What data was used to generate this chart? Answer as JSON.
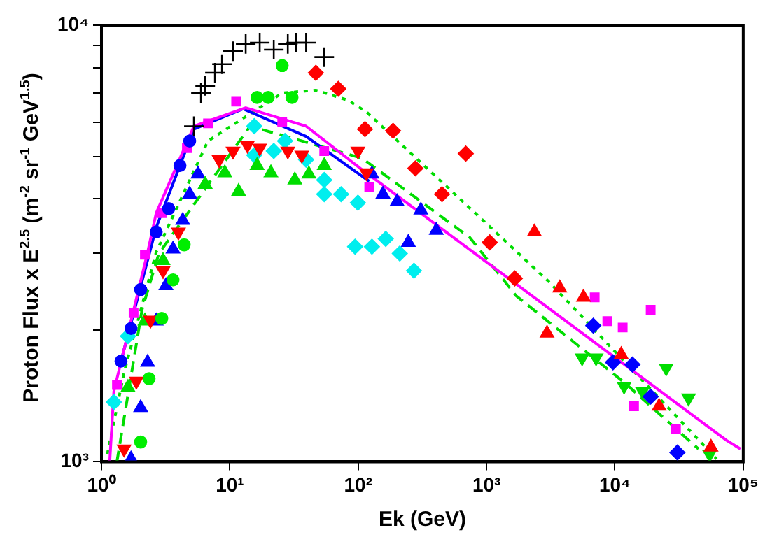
{
  "chart_data": {
    "type": "scatter",
    "xlabel": "Ek (GeV)",
    "ylabel": "Proton Flux x E$^{2.5}$ (m$^{-2}$ sr$^{-1}$ GeV$^{1.5}$)",
    "log": "xy",
    "grid": false,
    "legend": false,
    "xlim": [
      1,
      100000
    ],
    "ylim": [
      1000,
      10000
    ],
    "xticks": [
      {
        "value": 1,
        "label": "10⁰"
      },
      {
        "value": 10,
        "label": "10¹"
      },
      {
        "value": 100,
        "label": "10²"
      },
      {
        "value": 1000,
        "label": "10³"
      },
      {
        "value": 10000,
        "label": "10⁴"
      },
      {
        "value": 100000,
        "label": "10⁵"
      }
    ],
    "yticks": [
      {
        "value": 1000,
        "label": "10³"
      },
      {
        "value": 2000,
        "label": null
      },
      {
        "value": 3000,
        "label": null
      },
      {
        "value": 4000,
        "label": null
      },
      {
        "value": 5000,
        "label": null
      },
      {
        "value": 6000,
        "label": null
      },
      {
        "value": 7000,
        "label": null
      },
      {
        "value": 8000,
        "label": null
      },
      {
        "value": 9000,
        "label": null
      },
      {
        "value": 10000,
        "label": "10⁴"
      }
    ],
    "series": [
      {
        "color": "#000000",
        "marker": "cross",
        "x": [
          5.25,
          5.96,
          6.43,
          7.66,
          8.69,
          10.6,
          13.3,
          17.1,
          22.0,
          28.3,
          32.9,
          39.3,
          54.4
        ],
        "values": [
          5870,
          6990,
          7260,
          7780,
          8140,
          8720,
          9060,
          9120,
          8790,
          9060,
          9120,
          9120,
          8450
        ]
      },
      {
        "color": "#00ee00",
        "marker": "circle",
        "x": [
          2.02,
          2.35,
          2.95,
          3.61,
          4.41,
          16.3,
          19.9,
          30.5,
          25.6
        ],
        "values": [
          1110,
          1550,
          2130,
          2610,
          3140,
          6830,
          6830,
          6830,
          8080
        ]
      },
      {
        "color": "#ff0000",
        "marker": "triangle-down",
        "x": [
          1.5,
          1.87,
          2.41,
          3.02,
          3.98,
          8.26,
          10.6,
          13.7,
          17.1,
          28.3,
          36.4,
          99.5,
          116
        ],
        "values": [
          1070,
          1530,
          2110,
          2740,
          3360,
          4920,
          5150,
          5310,
          5230,
          5150,
          5040,
          5150,
          4590
        ]
      },
      {
        "color": "#00dd00",
        "marker": "triangle",
        "x": [
          1.61,
          2.18,
          3.02,
          6.43,
          9.14,
          11.7,
          16.3,
          20.9,
          32.1,
          41.3,
          54.4
        ],
        "values": [
          1480,
          2100,
          2890,
          4320,
          4590,
          4160,
          4770,
          4590,
          4420,
          4560,
          4770
        ]
      },
      {
        "color": "#0000ff",
        "marker": "circle",
        "x": [
          1.42,
          1.7,
          2.02,
          2.67,
          3.34,
          4.09,
          4.87
        ],
        "values": [
          1700,
          2020,
          2480,
          3360,
          3800,
          4770,
          5430
        ]
      },
      {
        "color": "#ff00ff",
        "marker": "square",
        "x": [
          1.32,
          1.78,
          2.18,
          2.95,
          4.63,
          6.76,
          11.2,
          25.6,
          54.4,
          122
        ],
        "values": [
          1500,
          2190,
          2980,
          3710,
          5230,
          5960,
          6680,
          6000,
          5150,
          4260
        ]
      },
      {
        "color": "#00eeee",
        "marker": "diamond",
        "x": [
          1.25,
          1.61,
          15.5,
          22.0,
          39.3,
          54.4,
          73.6,
          94.6
        ],
        "values": [
          1370,
          1940,
          5040,
          5150,
          4920,
          4100,
          4100,
          3110
        ]
      },
      {
        "color": "#00eeee",
        "marker": "diamond",
        "x": [
          15.5,
          26.9,
          54.4,
          99.5,
          128,
          164,
          211,
          272
        ],
        "values": [
          5870,
          5430,
          4420,
          3920,
          3110,
          3240,
          3000,
          2740
        ]
      },
      {
        "color": "#0000ff",
        "marker": "triangle",
        "x": [
          1.7,
          2.02,
          2.29,
          2.67,
          3.18,
          3.61,
          4.3,
          4.87,
          5.66,
          128,
          156,
          201,
          246,
          308,
          406
        ],
        "values": [
          1015,
          1330,
          1690,
          2100,
          2530,
          3070,
          3570,
          4100,
          4560,
          4560,
          4100,
          3940,
          3180,
          3770,
          3390
        ]
      },
      {
        "color": "#ff0000",
        "marker": "diamond",
        "x": [
          46.8,
          70.0,
          113,
          187,
          279,
          450,
          689,
          1060,
          1660
        ],
        "values": [
          7780,
          7150,
          5780,
          5730,
          4700,
          4100,
          5080,
          3180,
          2630
        ]
      },
      {
        "color": "#ff0000",
        "marker": "triangle",
        "x": [
          2360,
          2960,
          3720,
          5690,
          11200,
          22100,
          56100
        ],
        "values": [
          3360,
          1970,
          2500,
          2380,
          1760,
          1340,
          1080
        ]
      },
      {
        "color": "#ff00ff",
        "marker": "square",
        "x": [
          6960,
          8730,
          11500,
          19000,
          14100,
          29900
        ],
        "values": [
          2380,
          2100,
          2030,
          2230,
          1340,
          1190
        ]
      },
      {
        "color": "#0000ff",
        "marker": "diamond",
        "x": [
          6790,
          9660,
          13700,
          19000,
          30700
        ],
        "values": [
          2050,
          1690,
          1670,
          1410,
          1050
        ]
      },
      {
        "color": "#00dd00",
        "marker": "triangle-down",
        "x": [
          5560,
          7140,
          11800,
          16400,
          25100,
          37500,
          54700
        ],
        "values": [
          1730,
          1730,
          1490,
          1450,
          1640,
          1400,
          1040
        ]
      },
      {
        "type": "line",
        "color": "#ff00ff",
        "line_style": "solid",
        "x": [
          1.16,
          1.25,
          2.29,
          2.67,
          5.25,
          13.3,
          39.3,
          107,
          74000,
          95100
        ],
        "values": [
          1000,
          1450,
          3020,
          3710,
          5870,
          6470,
          5870,
          4670,
          1120,
          1070
        ]
      },
      {
        "type": "line",
        "color": "#0000ff",
        "line_style": "solid",
        "x": [
          1.42,
          2.67,
          5.25,
          12.7,
          39.3,
          122
        ],
        "values": [
          1700,
          3440,
          5780,
          6430,
          5560,
          4390
        ]
      },
      {
        "type": "line",
        "color": "#00dd00",
        "line_style": "dotted",
        "x": [
          1.11,
          1.5,
          2.67,
          6.76,
          25.6,
          46.8,
          83.4,
          116,
          3040,
          62100
        ],
        "values": [
          1040,
          1600,
          3020,
          5430,
          6990,
          7100,
          6730,
          6330,
          2590,
          1015
        ]
      },
      {
        "type": "line",
        "color": "#00dd00",
        "line_style": "dashed",
        "x": [
          1.32,
          2.07,
          2.8,
          14.4,
          107,
          743,
          1700,
          11800,
          44800
        ],
        "values": [
          1000,
          2230,
          3000,
          5870,
          4960,
          3260,
          2400,
          1520,
          1070
        ]
      }
    ]
  }
}
